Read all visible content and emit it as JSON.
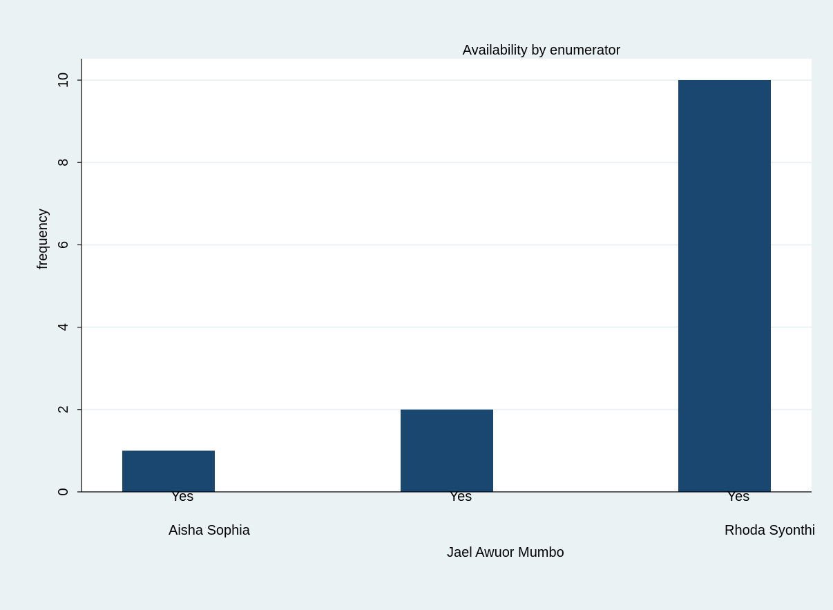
{
  "chart_data": {
    "type": "bar",
    "title": "Availability by enumerator",
    "ylabel": "frequency",
    "ylim": [
      0,
      10
    ],
    "yticks": [
      0,
      2,
      4,
      6,
      8,
      10
    ],
    "grid": true,
    "categories": [
      "Yes",
      "Yes",
      "Yes"
    ],
    "groups": [
      "Aisha Sophia",
      "Jael Awuor Mumbo",
      "Rhoda Syonthi"
    ],
    "values": [
      1,
      2,
      10
    ],
    "colors": {
      "bar": "#1a476f",
      "plot_background": "#ffffff",
      "outer_background": "#eaf2f3",
      "grid": "#eaf2f3",
      "axis": "#000000"
    }
  }
}
